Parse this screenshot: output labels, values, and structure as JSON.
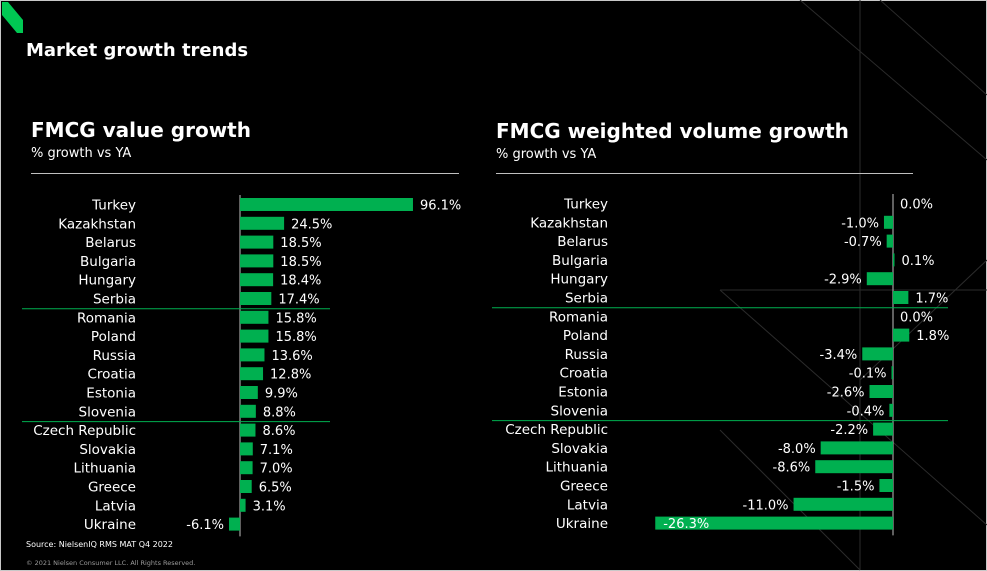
{
  "title": "Market growth trends",
  "accent_color": "#00b050",
  "logo_color": "#00c853",
  "charts": [
    {
      "id": "value",
      "title": "FMCG value growth",
      "subtitle": "% growth vs YA",
      "chart_data": {
        "type": "bar",
        "orientation": "horizontal",
        "categories": [
          "Turkey",
          "Kazakhstan",
          "Belarus",
          "Bulgaria",
          "Hungary",
          "Serbia",
          "Romania",
          "Poland",
          "Russia",
          "Croatia",
          "Estonia",
          "Slovenia",
          "Czech Republic",
          "Slovakia",
          "Lithuania",
          "Greece",
          "Latvia",
          "Ukraine"
        ],
        "values": [
          96.1,
          24.5,
          18.5,
          18.5,
          18.4,
          17.4,
          15.8,
          15.8,
          13.6,
          12.8,
          9.9,
          8.8,
          8.6,
          7.1,
          7.0,
          6.5,
          3.1,
          -6.1
        ],
        "labels": [
          "96.1%",
          "24.5%",
          "18.5%",
          "18.5%",
          "18.4%",
          "17.4%",
          "15.8%",
          "15.8%",
          "13.6%",
          "12.8%",
          "9.9%",
          "8.8%",
          "8.6%",
          "7.1%",
          "7.0%",
          "6.5%",
          "3.1%",
          "-6.1%"
        ],
        "unit": "%"
      }
    },
    {
      "id": "volume",
      "title": "FMCG weighted volume growth",
      "subtitle": "% growth vs YA",
      "chart_data": {
        "type": "bar",
        "orientation": "horizontal",
        "categories": [
          "Turkey",
          "Kazakhstan",
          "Belarus",
          "Bulgaria",
          "Hungary",
          "Serbia",
          "Romania",
          "Poland",
          "Russia",
          "Croatia",
          "Estonia",
          "Slovenia",
          "Czech Republic",
          "Slovakia",
          "Lithuania",
          "Greece",
          "Latvia",
          "Ukraine"
        ],
        "values": [
          0.0,
          -1.0,
          -0.7,
          0.1,
          -2.9,
          1.7,
          0.0,
          1.8,
          -3.4,
          -0.1,
          -2.6,
          -0.4,
          -2.2,
          -8.0,
          -8.6,
          -1.5,
          -11.0,
          -26.3
        ],
        "labels": [
          "0.0%",
          "-1.0%",
          "-0.7%",
          "0.1%",
          "-2.9%",
          "1.7%",
          "0.0%",
          "1.8%",
          "-3.4%",
          "-0.1%",
          "-2.6%",
          "-0.4%",
          "-2.2%",
          "-8.0%",
          "-8.6%",
          "-1.5%",
          "-11.0%",
          "-26.3%"
        ],
        "unit": "%"
      }
    }
  ],
  "source": "Source: NielsenIQ RMS MAT Q4 2022",
  "copyright": "© 2021 Nielsen Consumer LLC. All Rights Reserved."
}
